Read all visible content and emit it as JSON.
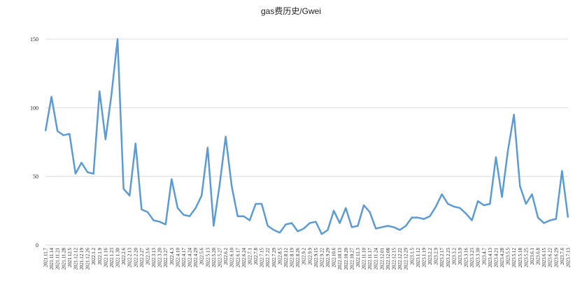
{
  "chart_data": {
    "type": "line",
    "title": "gas费历史/Gwei",
    "categories": [
      "2021.11.7",
      "2021.11.14",
      "2021.11.21",
      "2021.11.28",
      "2021.12.5",
      "2021.12.12",
      "2021.12.19",
      "2021.12.26",
      "2022.1.2",
      "2022.1.9",
      "2022.1.16",
      "2022.1.23",
      "2022.1.30",
      "2022.2.6",
      "2022.2.13",
      "2022.2.20",
      "2022.2.27",
      "2022.3.6",
      "2022.3.13",
      "2022.3.20",
      "2022.3.27",
      "2022.4.3",
      "2022.4.10",
      "2022.4.17",
      "2022.4.24",
      "2022.4.29",
      "2022.5.6",
      "2022.5.13",
      "2022.5.20",
      "2022.5.27",
      "2022.6.2",
      "2022.6.10",
      "2022.6.17",
      "2022.6.24",
      "2022.7.1",
      "2022.7.8",
      "2022.7.15",
      "2022.7.22",
      "2022.7.29",
      "2022.8.5",
      "2022.8.12",
      "2022.8.19",
      "2022.8.26",
      "2022.9.2",
      "2022.9.9",
      "2022.9.15",
      "2022.9.22",
      "2022.9.29",
      "2022.10.6",
      "2022.10.13",
      "2022.10.20",
      "2022.10.27",
      "2022.11.3",
      "2022.11.10",
      "2022.11.17",
      "2022.11.24",
      "2022.12.01",
      "2022.12.08",
      "2022.12.15",
      "2022.12.22",
      "2022.12.29",
      "2023.1.5",
      "2023.1.12",
      "2023.1.19",
      "2023.2.2",
      "2023.2.9",
      "2023.2.17",
      "2023.2.23",
      "2023.3.2",
      "2023.3.9",
      "2023.3.16",
      "2023.3.23",
      "2023.3.30",
      "2023.4.7",
      "2023.4.13",
      "2023.4.21",
      "2023.4.28",
      "2023.5.5",
      "2023.5.12",
      "2023.5.18",
      "2023.5.25",
      "2023.6.1",
      "2023.6.8",
      "2023.6.15",
      "2023.6.22",
      "2023.6.29",
      "2023.7.6",
      "2023.7.13"
    ],
    "series": [
      {
        "color": "#5b9bd5",
        "values": [
          83,
          108,
          83,
          80,
          81,
          52,
          60,
          53,
          52,
          112,
          77,
          110,
          150,
          41,
          36,
          74,
          26,
          24,
          18,
          17,
          15,
          48,
          27,
          22,
          21,
          27,
          36,
          71,
          14,
          44,
          79,
          43,
          21,
          21,
          18,
          30,
          30,
          14,
          11,
          9,
          15,
          16,
          10,
          12,
          16,
          17,
          8,
          11,
          25,
          16,
          27,
          13,
          14,
          29,
          24,
          12,
          13,
          14,
          13,
          11,
          14,
          20,
          20,
          19,
          21,
          28,
          37,
          30,
          28,
          27,
          23,
          18,
          32,
          29,
          30,
          64,
          35,
          69,
          95,
          43,
          30,
          37,
          20,
          16,
          18,
          19,
          54,
          20
        ]
      }
    ],
    "ylim": [
      0,
      150
    ],
    "yticks": [
      0,
      50,
      100,
      150
    ],
    "grid": true
  }
}
